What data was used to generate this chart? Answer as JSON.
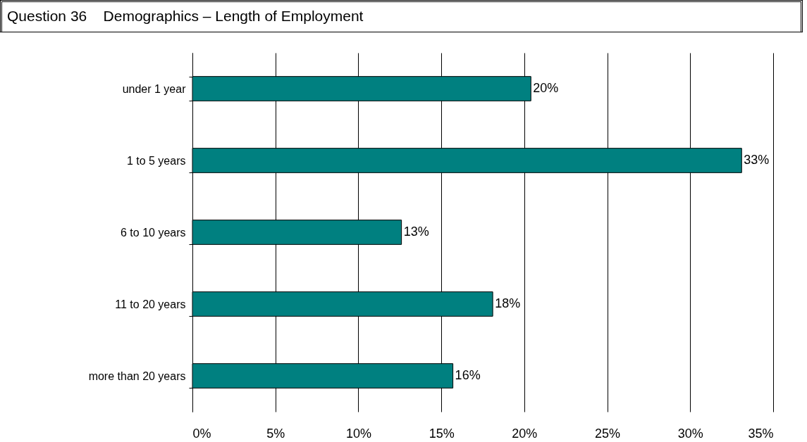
{
  "chart_data": {
    "type": "bar",
    "orientation": "horizontal",
    "title": "Question 36    Demographics – Length of Employment",
    "categories": [
      "under 1 year",
      "1 to 5 years",
      "6 to 10 years",
      "11 to 20 years",
      "more than 20 years"
    ],
    "values": [
      20.4,
      33.1,
      12.6,
      18.1,
      15.7
    ],
    "value_labels": [
      "20%",
      "33%",
      "13%",
      "18%",
      "16%"
    ],
    "color": "#008080",
    "xlim": [
      0,
      35
    ],
    "xticks": [
      {
        "value": 0,
        "label": "0%"
      },
      {
        "value": 5,
        "label": "5%"
      },
      {
        "value": 10,
        "label": "10%"
      },
      {
        "value": 15,
        "label": "15%"
      },
      {
        "value": 20,
        "label": "20%"
      },
      {
        "value": 25,
        "label": "25%"
      },
      {
        "value": 30,
        "label": "30%"
      },
      {
        "value": 35,
        "label": "35%"
      }
    ],
    "grid": "x"
  }
}
